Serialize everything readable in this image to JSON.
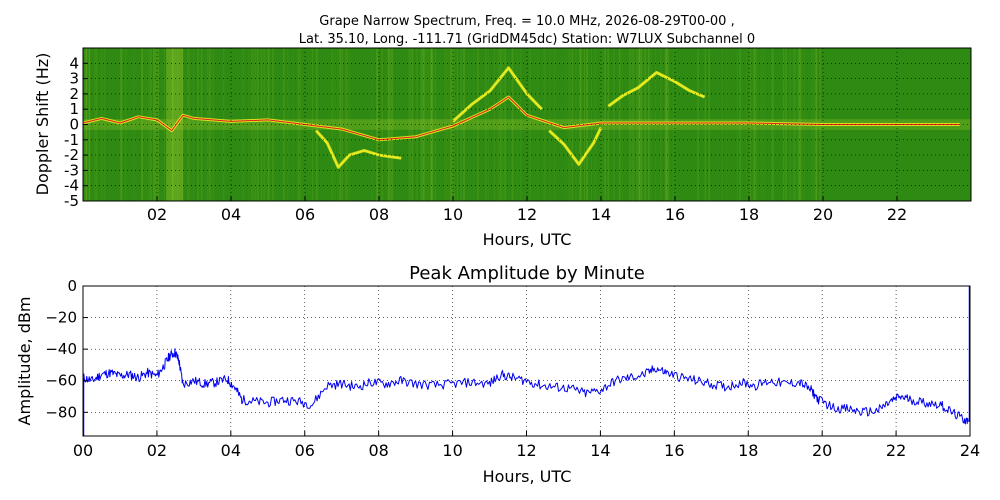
{
  "chart_data": [
    {
      "type": "heatmap",
      "title_line1": "Grape Narrow Spectrum, Freq. = 10.0 MHz, 2026-08-29T00-00 ,",
      "title_line2": "Lat.  35.10, Long. -111.71 (GridDM45dc) Station: W7LUX Subchannel 0",
      "xlabel": "Hours, UTC",
      "ylabel": "Doppler Shift (Hz)",
      "xlim": [
        0,
        24
      ],
      "ylim": [
        -5,
        5
      ],
      "x_ticks": [
        "02",
        "04",
        "06",
        "08",
        "10",
        "12",
        "14",
        "16",
        "18",
        "20",
        "22"
      ],
      "x_tick_values": [
        2,
        4,
        6,
        8,
        10,
        12,
        14,
        16,
        18,
        20,
        22
      ],
      "y_ticks": [
        "4",
        "3",
        "2",
        "1",
        "0",
        "-1",
        "-2",
        "-3",
        "-4",
        "-5"
      ],
      "y_tick_values": [
        4,
        3,
        2,
        1,
        0,
        -1,
        -2,
        -3,
        -4,
        -5
      ],
      "grid": true,
      "colors": {
        "background": "#2e8a12",
        "mid": "#8fc02a",
        "high": "#f0f020",
        "peak": "#e02020"
      },
      "traces": [
        {
          "x": [
            0,
            0.5,
            1,
            1.5,
            2,
            2.4,
            2.7,
            3,
            4,
            5,
            6,
            7,
            8,
            9,
            10,
            11,
            11.5,
            12,
            13,
            14,
            15,
            16,
            18,
            20,
            22,
            23.7
          ],
          "y": [
            0.1,
            0.4,
            0.1,
            0.5,
            0.3,
            -0.4,
            0.6,
            0.4,
            0.2,
            0.3,
            0.0,
            -0.3,
            -1.0,
            -0.8,
            -0.1,
            1.0,
            1.8,
            0.6,
            -0.2,
            0.1,
            0.1,
            0.1,
            0.1,
            0.0,
            0.0,
            0.0
          ]
        },
        {
          "x": [
            10,
            10.5,
            11,
            11.5,
            12,
            12.4
          ],
          "y": [
            0.2,
            1.3,
            2.2,
            3.7,
            2.0,
            1.0
          ]
        },
        {
          "x": [
            6.3,
            6.6,
            6.9,
            7.2,
            7.6,
            8.0,
            8.6
          ],
          "y": [
            -0.4,
            -1.2,
            -2.8,
            -2.0,
            -1.7,
            -2.0,
            -2.2
          ]
        },
        {
          "x": [
            12.6,
            13.0,
            13.4,
            13.8,
            14.0
          ],
          "y": [
            -0.4,
            -1.3,
            -2.6,
            -1.2,
            -0.2
          ]
        },
        {
          "x": [
            14.2,
            14.6,
            15,
            15.5,
            16,
            16.4,
            16.8
          ],
          "y": [
            1.2,
            1.9,
            2.4,
            3.4,
            2.8,
            2.2,
            1.8
          ]
        }
      ]
    },
    {
      "type": "line",
      "title": "Peak Amplitude by Minute",
      "xlabel": "Hours, UTC",
      "ylabel": "Amplitude, dBm",
      "xlim": [
        0,
        24
      ],
      "ylim": [
        -95,
        0
      ],
      "x_ticks": [
        "00",
        "02",
        "04",
        "06",
        "08",
        "10",
        "12",
        "14",
        "16",
        "18",
        "20",
        "22",
        "24"
      ],
      "x_tick_values": [
        0,
        2,
        4,
        6,
        8,
        10,
        12,
        14,
        16,
        18,
        20,
        22,
        24
      ],
      "y_ticks": [
        "0",
        "−20",
        "−40",
        "−60",
        "−80"
      ],
      "y_tick_values": [
        0,
        -20,
        -40,
        -60,
        -80
      ],
      "grid": true,
      "series": [
        {
          "color": "#0000ee",
          "x": [
            0,
            0.25,
            0.5,
            0.75,
            1,
            1.25,
            1.5,
            1.75,
            2,
            2.2,
            2.35,
            2.5,
            2.6,
            2.7,
            3,
            3.3,
            3.6,
            3.9,
            4.1,
            4.3,
            4.6,
            5,
            5.4,
            5.8,
            6.2,
            6.6,
            7,
            7.4,
            7.8,
            8.2,
            8.6,
            9,
            9.5,
            10,
            10.5,
            11,
            11.3,
            11.6,
            12,
            12.4,
            12.8,
            13.2,
            13.6,
            14,
            14.4,
            14.8,
            15.2,
            15.5,
            15.8,
            16.2,
            16.6,
            17,
            17.4,
            17.8,
            18.2,
            18.6,
            19,
            19.4,
            19.7,
            19.9,
            20.3,
            20.7,
            21.1,
            21.5,
            21.8,
            22.1,
            22.4,
            22.8,
            23.2,
            23.5,
            23.8,
            23.95
          ],
          "y": [
            -58,
            -60,
            -56,
            -55,
            -57,
            -56,
            -58,
            -55,
            -57,
            -50,
            -44,
            -42,
            -48,
            -62,
            -60,
            -62,
            -61,
            -59,
            -64,
            -72,
            -73,
            -74,
            -72,
            -73,
            -75,
            -63,
            -62,
            -64,
            -61,
            -62,
            -60,
            -62,
            -63,
            -62,
            -61,
            -62,
            -56,
            -58,
            -60,
            -63,
            -64,
            -65,
            -68,
            -66,
            -60,
            -58,
            -56,
            -52,
            -55,
            -58,
            -60,
            -62,
            -64,
            -61,
            -63,
            -60,
            -62,
            -61,
            -66,
            -72,
            -77,
            -78,
            -80,
            -79,
            -74,
            -70,
            -72,
            -74,
            -75,
            -80,
            -84,
            -86
          ]
        }
      ]
    }
  ]
}
